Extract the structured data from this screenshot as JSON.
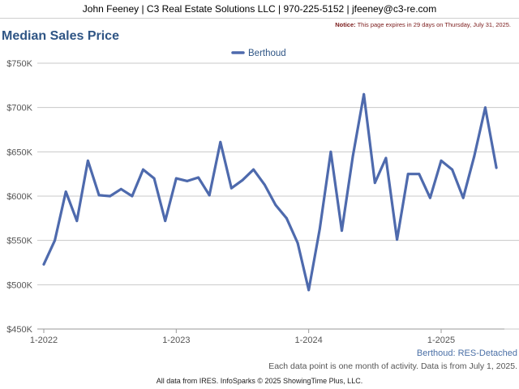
{
  "header": {
    "contact": "John Feeney | C3 Real Estate Solutions LLC | 970-225-5152 | jfeeney@c3-re.com",
    "notice_label": "Notice:",
    "notice_text": "This page expires in 29 days on Thursday, July 31, 2025."
  },
  "chart_title": "Median Sales Price",
  "footer": {
    "subtitle": "Berthoud: RES-Detached",
    "note": "Each data point is one month of activity. Data is from July 1, 2025.",
    "credit": "All data from IRES. InfoSparks © 2025 ShowingTime Plus, LLC."
  },
  "chart_data": {
    "type": "line",
    "title": "Median Sales Price",
    "xlabel": "",
    "ylabel": "",
    "x_ticks": [
      "1-2022",
      "1-2023",
      "1-2024",
      "1-2025"
    ],
    "y_ticks": [
      "$450K",
      "$500K",
      "$550K",
      "$600K",
      "$650K",
      "$700K",
      "$750K"
    ],
    "ylim": [
      450000,
      750000
    ],
    "grid": true,
    "legend_position": "top-center",
    "series": [
      {
        "name": "Berthoud",
        "color": "#4e6aad",
        "x": [
          "2022-01",
          "2022-02",
          "2022-03",
          "2022-04",
          "2022-05",
          "2022-06",
          "2022-07",
          "2022-08",
          "2022-09",
          "2022-10",
          "2022-11",
          "2022-12",
          "2023-01",
          "2023-02",
          "2023-03",
          "2023-04",
          "2023-05",
          "2023-06",
          "2023-07",
          "2023-08",
          "2023-09",
          "2023-10",
          "2023-11",
          "2023-12",
          "2024-01",
          "2024-02",
          "2024-03",
          "2024-04",
          "2024-05",
          "2024-06",
          "2024-07",
          "2024-08",
          "2024-09",
          "2024-10",
          "2024-11",
          "2024-12",
          "2025-01",
          "2025-02",
          "2025-03",
          "2025-04",
          "2025-05",
          "2025-06"
        ],
        "values": [
          523000,
          550000,
          605000,
          572000,
          640000,
          601000,
          600000,
          608000,
          600000,
          630000,
          620000,
          572000,
          620000,
          617000,
          621000,
          601000,
          661000,
          609000,
          618000,
          630000,
          613000,
          590000,
          575000,
          547000,
          494000,
          563000,
          650000,
          561000,
          645000,
          715000,
          615000,
          643000,
          551000,
          625000,
          625000,
          598000,
          640000,
          630000,
          598000,
          645000,
          700000,
          632000
        ]
      }
    ]
  }
}
